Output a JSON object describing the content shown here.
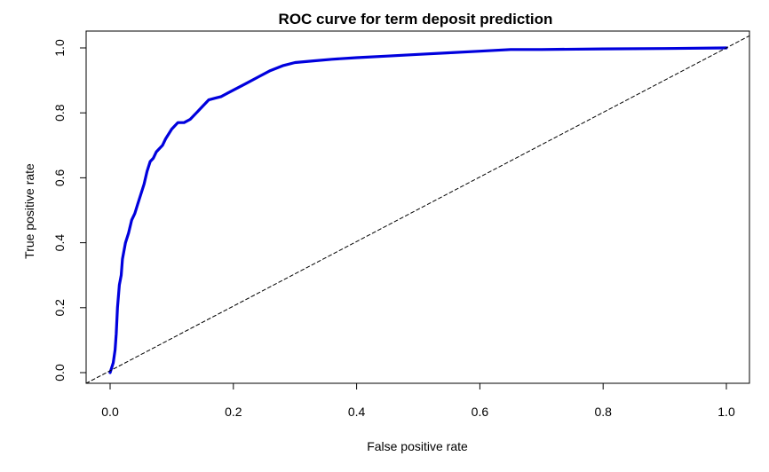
{
  "chart_data": {
    "type": "line",
    "title": "ROC curve for term deposit prediction",
    "xlabel": "False positive rate",
    "ylabel": "True positive rate",
    "xlim": [
      0.0,
      1.0
    ],
    "ylim": [
      0.0,
      1.0
    ],
    "x_ticks": [
      "0.0",
      "0.2",
      "0.4",
      "0.6",
      "0.8",
      "1.0"
    ],
    "y_ticks": [
      "0.0",
      "0.2",
      "0.4",
      "0.6",
      "0.8",
      "1.0"
    ],
    "grid": false,
    "series": [
      {
        "color": "#0000dd",
        "style": "solid",
        "x": [
          0.0,
          0.005,
          0.008,
          0.01,
          0.012,
          0.015,
          0.018,
          0.02,
          0.025,
          0.03,
          0.035,
          0.04,
          0.045,
          0.05,
          0.055,
          0.06,
          0.065,
          0.07,
          0.075,
          0.08,
          0.085,
          0.09,
          0.1,
          0.11,
          0.12,
          0.13,
          0.14,
          0.15,
          0.16,
          0.17,
          0.18,
          0.19,
          0.2,
          0.22,
          0.24,
          0.26,
          0.28,
          0.3,
          0.33,
          0.36,
          0.4,
          0.45,
          0.5,
          0.55,
          0.6,
          0.65,
          0.7,
          0.8,
          0.9,
          1.0
        ],
        "y": [
          0.0,
          0.03,
          0.07,
          0.12,
          0.2,
          0.27,
          0.3,
          0.35,
          0.4,
          0.43,
          0.47,
          0.49,
          0.52,
          0.55,
          0.58,
          0.62,
          0.65,
          0.66,
          0.68,
          0.69,
          0.7,
          0.72,
          0.75,
          0.77,
          0.77,
          0.78,
          0.8,
          0.82,
          0.84,
          0.845,
          0.85,
          0.86,
          0.87,
          0.89,
          0.91,
          0.93,
          0.945,
          0.955,
          0.96,
          0.965,
          0.97,
          0.975,
          0.98,
          0.985,
          0.99,
          0.995,
          0.995,
          0.997,
          0.998,
          1.0
        ]
      },
      {
        "color": "#000000",
        "style": "dashed",
        "x": [
          0.0,
          1.0
        ],
        "y": [
          0.0,
          1.0
        ]
      }
    ]
  }
}
